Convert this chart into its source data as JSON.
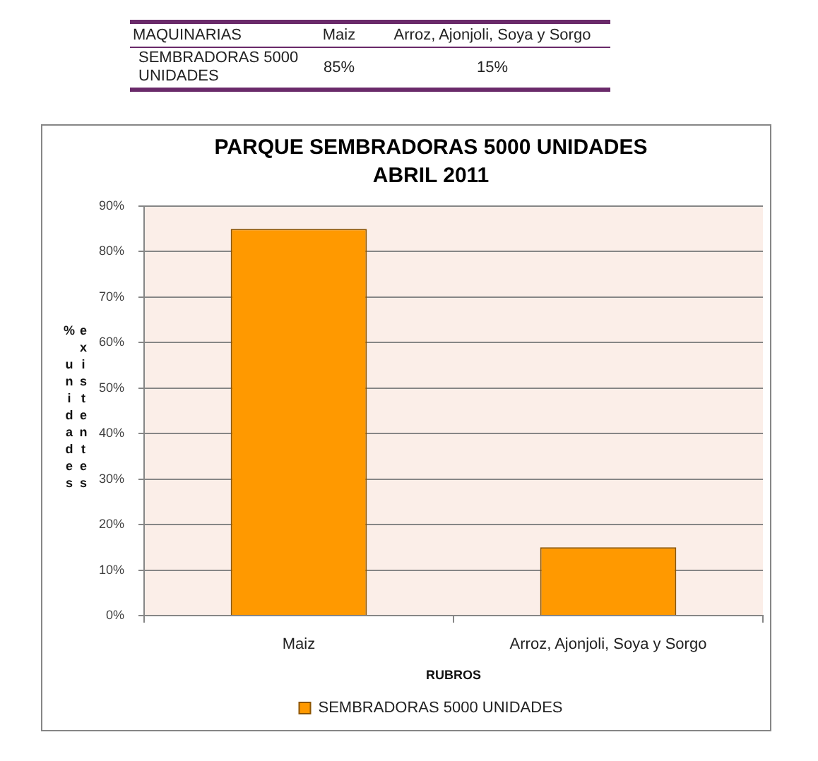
{
  "chart_data": {
    "type": "bar",
    "title": "PARQUE SEMBRADORAS 5000 UNIDADES",
    "subtitle": "ABRIL 2011",
    "xlabel": "RUBROS",
    "ylabel": "% unidades existentes",
    "categories": [
      "Maiz",
      "Arroz, Ajonjoli, Soya y Sorgo"
    ],
    "series": [
      {
        "name": "SEMBRADORAS 5000 UNIDADES",
        "color": "#ff9900",
        "values": [
          85,
          15
        ],
        "value_labels": [
          "85%",
          "15%"
        ]
      }
    ],
    "ylim": [
      0,
      90
    ],
    "yticks": [
      {
        "value": 0,
        "label": "0%"
      },
      {
        "value": 10,
        "label": "10%"
      },
      {
        "value": 20,
        "label": "20%"
      },
      {
        "value": 30,
        "label": "30%"
      },
      {
        "value": 40,
        "label": "40%"
      },
      {
        "value": 50,
        "label": "50%"
      },
      {
        "value": 60,
        "label": "60%"
      },
      {
        "value": 70,
        "label": "70%"
      },
      {
        "value": 80,
        "label": "80%"
      },
      {
        "value": 90,
        "label": "90%"
      }
    ],
    "grid": "y",
    "legend": "bottom",
    "annotations": [
      "MAQUINARIAS"
    ]
  }
}
